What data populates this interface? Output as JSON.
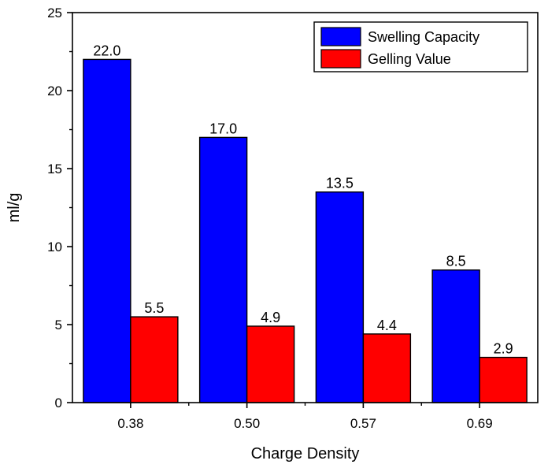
{
  "chart_data": {
    "type": "bar",
    "xlabel": "Charge Density",
    "ylabel": "ml/g",
    "categories": [
      "0.38",
      "0.50",
      "0.57",
      "0.69"
    ],
    "ylim": [
      0,
      25
    ],
    "yticks": [
      "0",
      "5",
      "10",
      "15",
      "20",
      "25"
    ],
    "series": [
      {
        "name": "Swelling Capacity",
        "values": [
          22.0,
          17.0,
          13.5,
          8.5
        ],
        "labels": [
          "22.0",
          "17.0",
          "13.5",
          "8.5"
        ],
        "color": "#0000ff"
      },
      {
        "name": "Gelling Value",
        "values": [
          5.5,
          4.9,
          4.4,
          2.9
        ],
        "labels": [
          "5.5",
          "4.9",
          "4.4",
          "2.9"
        ],
        "color": "#ff0000"
      }
    ],
    "legend_position": "top-right",
    "grid": false
  }
}
